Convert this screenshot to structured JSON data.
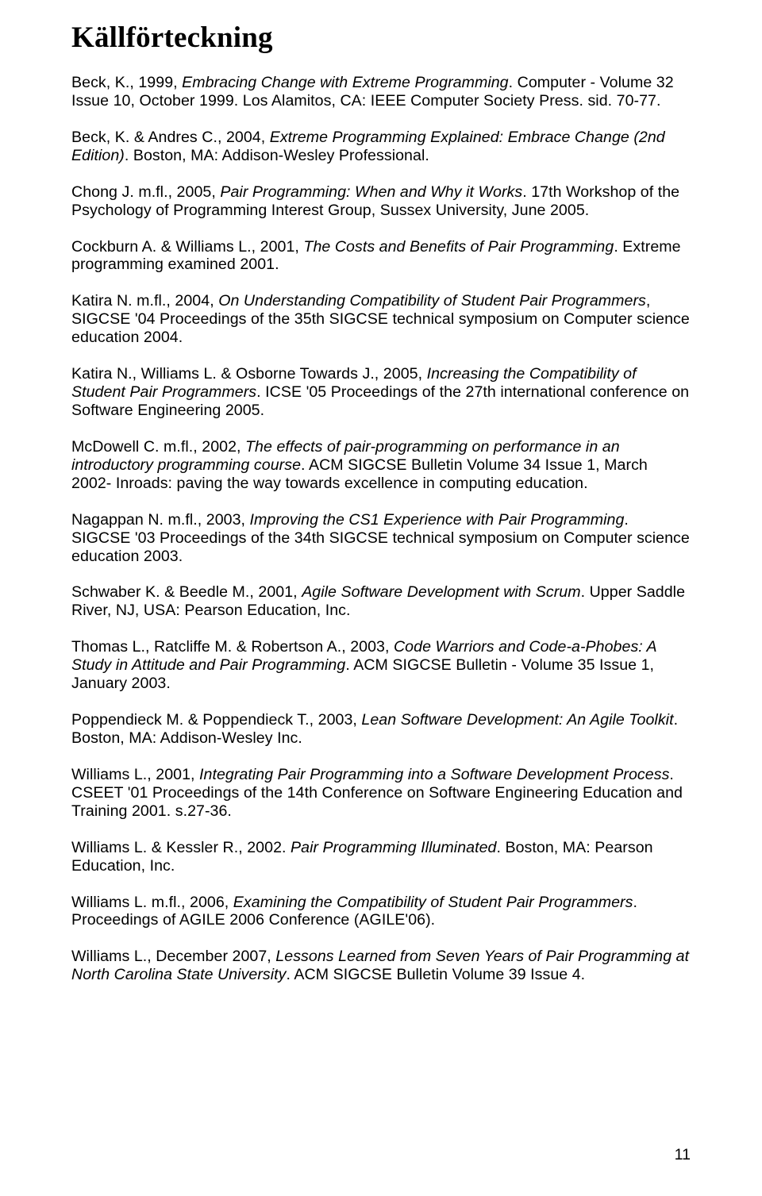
{
  "title": "Källförteckning",
  "pageNumber": "11",
  "entries": [
    {
      "pre": "Beck, K., 1999, ",
      "ital": "Embracing Change with Extreme Programming",
      "post": ". Computer - Volume 32 Issue 10, October 1999. Los Alamitos, CA: IEEE Computer Society Press. sid. 70-77.",
      "pre2": "",
      "ital2": "",
      "post2": ""
    },
    {
      "pre": "Beck, K. & Andres C., 2004, ",
      "ital": "Extreme Programming Explained: Embrace Change (2nd Edition)",
      "post": ". Boston, MA: Addison-Wesley Professional.",
      "pre2": "",
      "ital2": "",
      "post2": ""
    },
    {
      "pre": "Chong J. m.fl., 2005, ",
      "ital": "Pair Programming: When and Why it Works",
      "post": ". 17th Workshop of the Psychology of Programming Interest Group, Sussex University, June 2005.",
      "pre2": "",
      "ital2": "",
      "post2": ""
    },
    {
      "pre": "Cockburn A. & Williams L., 2001, ",
      "ital": "The Costs and Benefits of Pair Programming",
      "post": ". Extreme programming examined 2001.",
      "pre2": "",
      "ital2": "",
      "post2": ""
    },
    {
      "pre": "Katira N. m.fl., 2004, ",
      "ital": "On Understanding Compatibility of Student Pair Programmers",
      "post": ", SIGCSE '04 Proceedings of the 35th SIGCSE technical symposium on Computer science education 2004.",
      "pre2": "",
      "ital2": "",
      "post2": ""
    },
    {
      "pre": "Katira N., Williams L. & Osborne Towards J., 2005, ",
      "ital": "Increasing the Compatibility of Student Pair Programmers",
      "post": ". ICSE '05 Proceedings of the 27th international conference on Software Engineering 2005.",
      "pre2": "",
      "ital2": "",
      "post2": ""
    },
    {
      "pre": "McDowell C. m.fl., 2002, ",
      "ital": "The effects of pair-programming on performance in an introductory programming course",
      "post": ". ACM SIGCSE Bulletin Volume 34 Issue 1, March 2002- Inroads: paving the way towards excellence in computing education.",
      "pre2": "",
      "ital2": "",
      "post2": ""
    },
    {
      "pre": "Nagappan N. m.fl., 2003, ",
      "ital": "Improving the CS1 Experience with Pair Programming",
      "post": ". SIGCSE '03 Proceedings of the 34th SIGCSE technical symposium on Computer science education 2003.",
      "pre2": "",
      "ital2": "",
      "post2": ""
    },
    {
      "pre": "Schwaber K. & Beedle M., 2001, ",
      "ital": "Agile Software Development with Scrum",
      "post": ". Upper Saddle River, NJ, USA: Pearson Education, Inc.",
      "pre2": "",
      "ital2": "",
      "post2": ""
    },
    {
      "pre": "Thomas L., Ratcliffe M. & Robertson A., 2003, ",
      "ital": "Code Warriors and Code-a-Phobes: A Study in Attitude and Pair Programming",
      "post": ". ACM SIGCSE Bulletin - Volume 35 Issue 1, January 2003.",
      "pre2": "",
      "ital2": "",
      "post2": ""
    },
    {
      "pre": "Poppendieck M. & Poppendieck T., 2003, ",
      "ital": "Lean Software Development: An Agile Toolkit",
      "post": ". Boston, MA: Addison-Wesley Inc.",
      "pre2": "",
      "ital2": "",
      "post2": ""
    },
    {
      "pre": "Williams L., 2001, ",
      "ital": "Integrating Pair Programming into a Software Development Process",
      "post": ". CSEET '01 Proceedings of the 14th Conference on Software Engineering Education and Training 2001. s.27-36.",
      "pre2": "",
      "ital2": "",
      "post2": ""
    },
    {
      "pre": "Williams L. & Kessler R., 2002. ",
      "ital": "Pair Programming Illuminated",
      "post": ". Boston, MA: Pearson Education, Inc.",
      "pre2": "",
      "ital2": "",
      "post2": ""
    },
    {
      "pre": "Williams L. m.fl., 2006, ",
      "ital": "Examining the Compatibility of Student Pair Programmers",
      "post": ". Proceedings of AGILE 2006 Conference (AGILE'06).",
      "pre2": "",
      "ital2": "",
      "post2": ""
    },
    {
      "pre": "Williams L., December 2007, ",
      "ital": "Lessons Learned from Seven Years of Pair Programming at North Carolina State University",
      "post": ". ACM SIGCSE Bulletin Volume 39 Issue 4.",
      "pre2": "",
      "ital2": "",
      "post2": ""
    }
  ]
}
